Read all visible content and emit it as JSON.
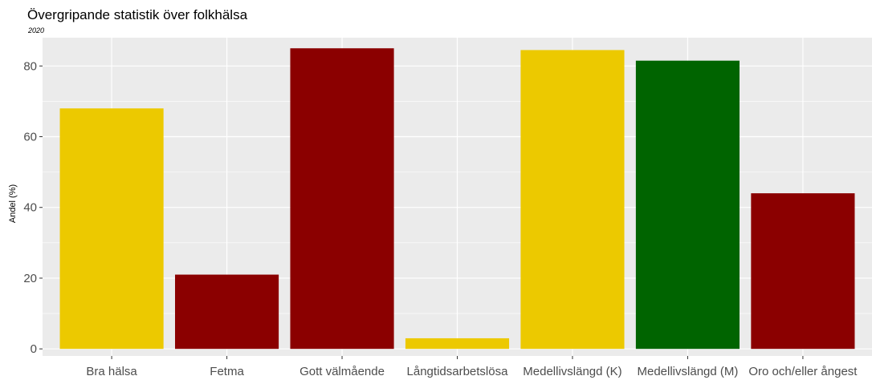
{
  "header": {
    "title": "Övergripande statistik över folkhälsa",
    "subtitle": "2020"
  },
  "chart_data": {
    "type": "bar",
    "title": "Övergripande statistik över folkhälsa",
    "subtitle": "2020",
    "xlabel": "",
    "ylabel": "Andel (%)",
    "categories": [
      "Bra hälsa",
      "Fetma",
      "Gott välmående",
      "Långtidsarbetslösa",
      "Medellivslängd (K)",
      "Medellivslängd (M)",
      "Oro och/eller ångest"
    ],
    "values": [
      68,
      21,
      85,
      3,
      84.5,
      81.5,
      44
    ],
    "colors": [
      "#ecc900",
      "#8b0000",
      "#8b0000",
      "#ecc900",
      "#ecc900",
      "#006400",
      "#8b0000"
    ],
    "yticks": [
      0,
      20,
      40,
      60,
      80
    ],
    "ylim": [
      -2,
      88
    ],
    "grid": true,
    "legend": "none",
    "panel_background": "#ebebeb",
    "grid_color": "#ffffff"
  }
}
